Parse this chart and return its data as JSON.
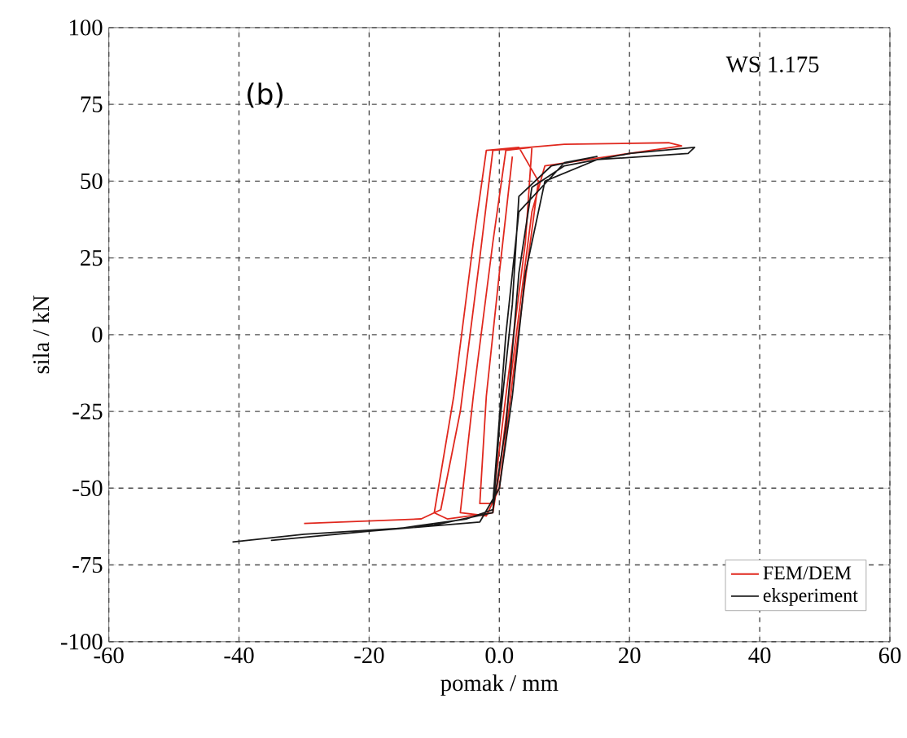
{
  "chart_data": {
    "type": "line",
    "annotations": [
      "(b)",
      "WS 1.175"
    ],
    "xlabel": "pomak / mm",
    "ylabel": "sila / kN",
    "xlim": [
      -60,
      60
    ],
    "ylim": [
      -100,
      100
    ],
    "xticks": [
      -60,
      -40,
      -20,
      {
        "value": 0,
        "label": "0.0"
      },
      20,
      40,
      60
    ],
    "yticks": [
      -100,
      -75,
      -50,
      -25,
      0,
      25,
      50,
      75,
      100
    ],
    "grid": true,
    "legend": "bottom right",
    "marker": "none",
    "line_style": "solid",
    "series": [
      {
        "name": "FEM/DEM",
        "color": "#e0281e",
        "x": [
          -30,
          -12,
          -9,
          -6,
          -3,
          -1,
          10,
          26,
          28,
          7,
          5,
          2,
          0,
          -1,
          -8,
          -10,
          -7,
          -4,
          -2,
          3,
          6,
          3,
          0,
          -2,
          -6,
          -4,
          -1,
          1,
          5,
          4,
          1,
          -1,
          -3,
          -2,
          0,
          2
        ],
        "values": [
          -61.5,
          -60,
          -57,
          -25,
          25,
          60,
          62,
          62.5,
          61.5,
          55,
          40,
          -10,
          -45,
          -58,
          -60,
          -58,
          -20,
          30,
          60,
          61,
          50,
          2,
          -50,
          -59,
          -58,
          -20,
          30,
          60,
          61,
          30,
          -20,
          -55,
          -55,
          -20,
          20,
          58
        ]
      },
      {
        "name": "eksperiment",
        "color": "#1a1a1a",
        "x": [
          -41,
          -30,
          -15,
          -5,
          -1,
          1,
          3,
          5,
          10,
          20,
          30,
          29,
          15,
          7,
          4,
          2,
          0,
          -3,
          -20,
          -35,
          -30,
          -10,
          -1,
          0,
          2,
          3,
          8,
          15,
          10,
          3,
          1,
          -1
        ],
        "values": [
          -67.5,
          -65,
          -63,
          -60,
          -57,
          -30,
          20,
          48,
          55,
          59,
          61,
          59,
          57,
          50,
          20,
          -20,
          -50,
          -61,
          -64,
          -67,
          -66,
          -62,
          -58,
          -30,
          10,
          45,
          55,
          58,
          56,
          40,
          0,
          -55
        ]
      }
    ]
  }
}
